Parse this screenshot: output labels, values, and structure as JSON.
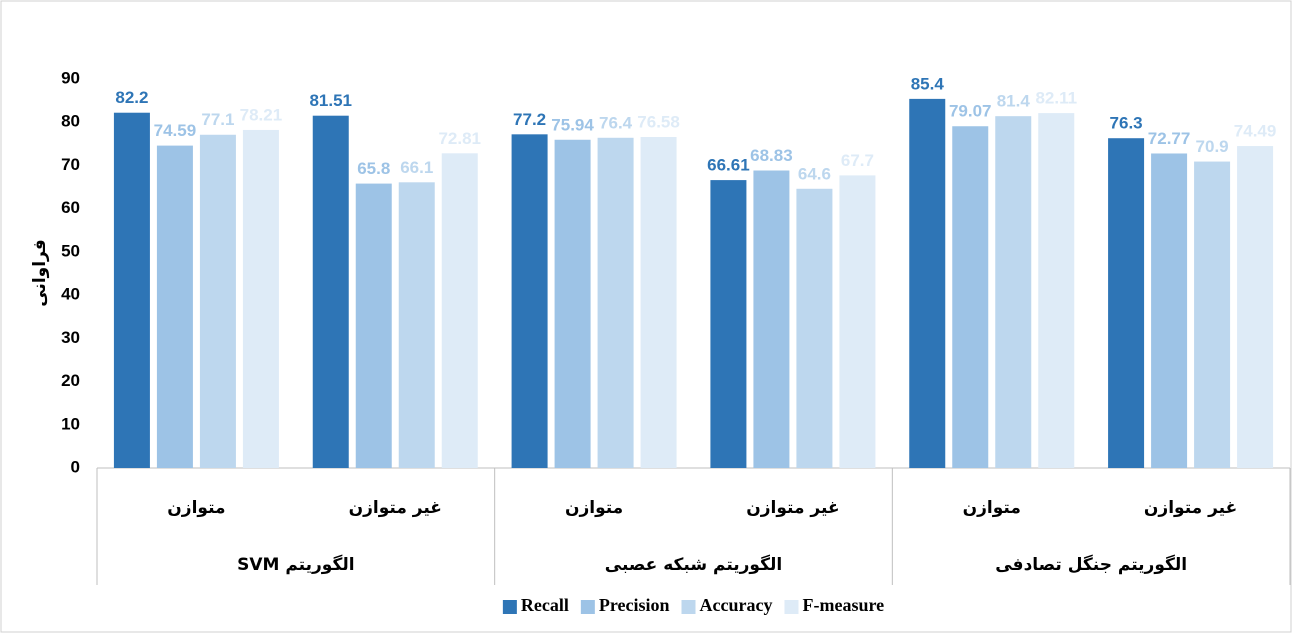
{
  "chart_data": {
    "type": "bar",
    "y_label": "فراوانی",
    "categories": [
      "متوازن",
      "غیر متوازن",
      "متوازن",
      "غیر متوازن",
      "متوازن",
      "غیر متوازن"
    ],
    "groups": [
      "الگوریتم SVM",
      "الگوریتم شبکه عصبی",
      "الگوریتم جنگل تصادفی"
    ],
    "series": [
      {
        "name": "Recall",
        "color": "#2e75b6",
        "values": [
          82.2,
          81.51,
          77.2,
          66.61,
          85.4,
          76.3
        ]
      },
      {
        "name": "Precision",
        "color": "#9dc3e6",
        "values": [
          74.59,
          65.8,
          75.94,
          68.83,
          79.07,
          72.77
        ]
      },
      {
        "name": "Accuracy",
        "color": "#bdd7ee",
        "values": [
          77.1,
          66.1,
          76.4,
          64.6,
          81.4,
          70.9
        ]
      },
      {
        "name": "F-measure",
        "color": "#deebf7",
        "values": [
          78.21,
          72.81,
          76.58,
          67.7,
          82.11,
          74.49
        ]
      }
    ],
    "ylim": [
      0,
      90
    ],
    "yticks": [
      0,
      10,
      20,
      30,
      40,
      50,
      60,
      70,
      80,
      90
    ],
    "grid": false,
    "legend": "bottom"
  }
}
